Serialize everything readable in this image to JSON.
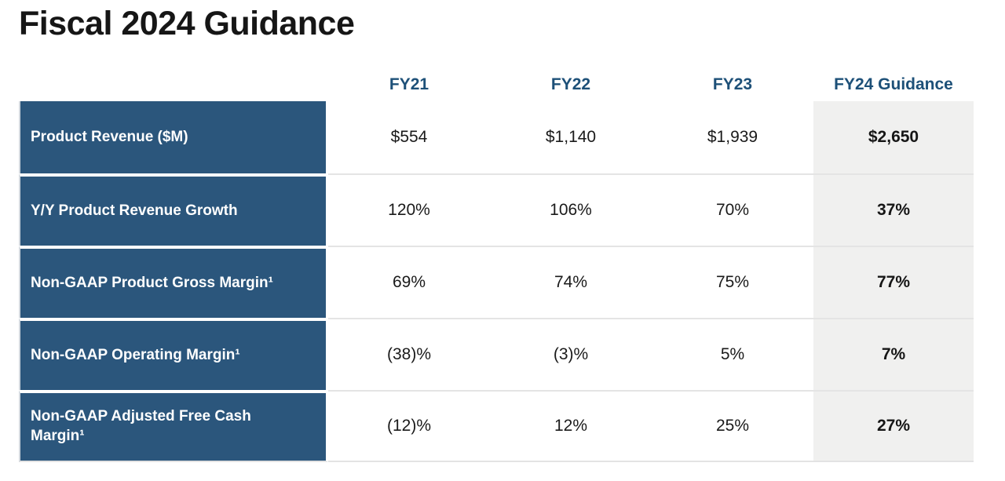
{
  "page": {
    "title": "Fiscal 2024 Guidance"
  },
  "colors": {
    "label_cell_blue": "#2b567c",
    "header_text_blue": "#1d5078",
    "table_top_rule_blue": "#1d5078",
    "highlight_column_bg": "#f0f0ef",
    "row_separator_gray": "#e4e4e4",
    "title_black": "#161616"
  },
  "chart_data": {
    "type": "table",
    "title": "Fiscal 2024 Guidance",
    "columns": [
      "FY21",
      "FY22",
      "FY23",
      "FY24 Guidance"
    ],
    "highlight_column": "FY24 Guidance",
    "rows": [
      {
        "label": "Product Revenue ($M)",
        "values": [
          "$554",
          "$1,140",
          "$1,939",
          "$2,650"
        ]
      },
      {
        "label": "Y/Y Product Revenue Growth",
        "values": [
          "120%",
          "106%",
          "70%",
          "37%"
        ]
      },
      {
        "label": "Non-GAAP Product Gross Margin¹",
        "values": [
          "69%",
          "74%",
          "75%",
          "77%"
        ]
      },
      {
        "label": "Non-GAAP Operating Margin¹",
        "values": [
          "(38)%",
          "(3)%",
          "5%",
          "7%"
        ]
      },
      {
        "label": "Non-GAAP Adjusted Free Cash Margin¹",
        "values": [
          "(12)%",
          "12%",
          "25%",
          "27%"
        ]
      }
    ]
  }
}
